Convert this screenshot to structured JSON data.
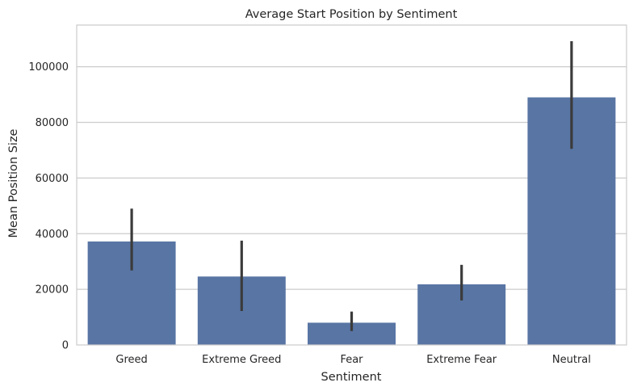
{
  "chart_data": {
    "type": "bar",
    "title": "Average Start Position by Sentiment",
    "xlabel": "Sentiment",
    "ylabel": "Mean Position Size",
    "categories": [
      "Greed",
      "Extreme Greed",
      "Fear",
      "Extreme Fear",
      "Neutral"
    ],
    "values": [
      37200,
      24600,
      8000,
      21800,
      89000
    ],
    "error_low": [
      26800,
      12200,
      5000,
      16000,
      70500
    ],
    "error_high": [
      49000,
      37500,
      12000,
      28800,
      109200
    ],
    "ylim": [
      0,
      115000
    ],
    "yticks": [
      0,
      20000,
      40000,
      60000,
      80000,
      100000
    ],
    "ytick_labels": [
      "0",
      "20000",
      "40000",
      "60000",
      "80000",
      "100000"
    ],
    "grid": true,
    "colors": {
      "bar": "#5875a4",
      "error": "#3b3b3b",
      "grid": "#cccccc",
      "spine": "#cccccc",
      "text": "#262626"
    }
  }
}
